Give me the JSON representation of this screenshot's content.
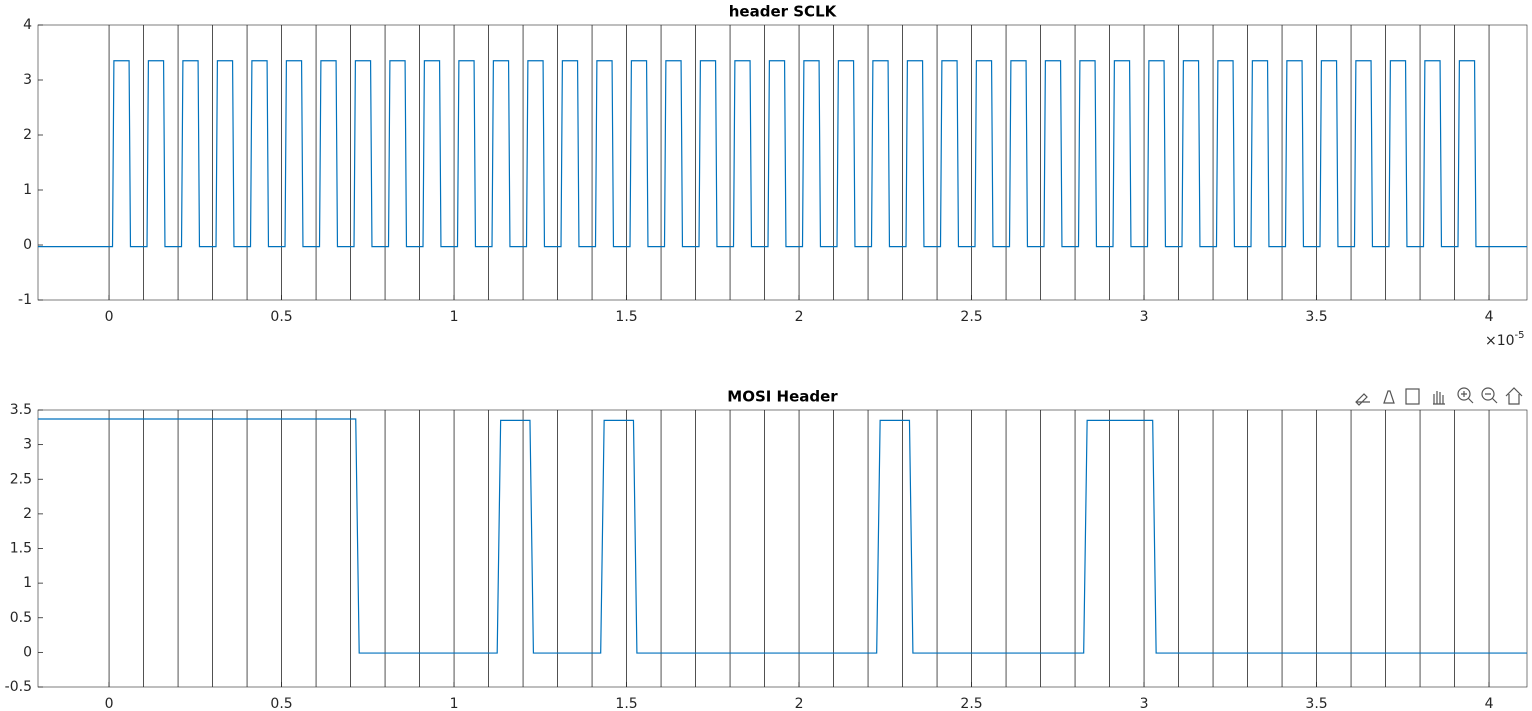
{
  "chart_data": [
    {
      "type": "line",
      "title": "header SCLK",
      "color": "#0072bd",
      "xline_color": "#262626",
      "xlim": [
        -0.206,
        4.11
      ],
      "ylim": [
        -1,
        4
      ],
      "xticks": [
        0,
        0.5,
        1,
        1.5,
        2,
        2.5,
        3,
        3.5,
        4
      ],
      "yticks": [
        -1,
        0,
        1,
        2,
        3,
        4
      ],
      "x_multiplier": "×10",
      "x_exponent": "-5",
      "xlines": [
        0,
        0.1,
        0.2,
        0.3,
        0.4,
        0.5,
        0.6,
        0.7,
        0.8,
        0.9,
        1,
        1.1,
        1.2,
        1.3,
        1.4,
        1.5,
        1.6,
        1.7,
        1.8,
        1.9,
        2,
        2.1,
        2.2,
        2.3,
        2.4,
        2.5,
        2.6,
        2.7,
        2.8,
        2.9,
        3,
        3.1,
        3.2,
        3.3,
        3.4,
        3.5,
        3.6,
        3.7,
        3.8,
        3.9,
        4
      ],
      "x": [
        -0.206,
        0.01,
        0.014,
        0.058,
        0.062,
        0.11,
        0.114,
        0.158,
        0.162,
        0.21,
        0.214,
        0.258,
        0.262,
        0.31,
        0.314,
        0.358,
        0.362,
        0.41,
        0.414,
        0.458,
        0.462,
        0.51,
        0.514,
        0.558,
        0.562,
        0.61,
        0.614,
        0.658,
        0.662,
        0.71,
        0.714,
        0.758,
        0.762,
        0.81,
        0.814,
        0.858,
        0.862,
        0.91,
        0.914,
        0.958,
        0.962,
        1.01,
        1.014,
        1.058,
        1.062,
        1.11,
        1.114,
        1.158,
        1.162,
        1.21,
        1.214,
        1.258,
        1.262,
        1.31,
        1.314,
        1.358,
        1.362,
        1.41,
        1.414,
        1.458,
        1.462,
        1.51,
        1.514,
        1.558,
        1.562,
        1.61,
        1.614,
        1.658,
        1.662,
        1.71,
        1.714,
        1.758,
        1.762,
        1.81,
        1.814,
        1.858,
        1.862,
        1.91,
        1.914,
        1.958,
        1.962,
        2.01,
        2.014,
        2.058,
        2.062,
        2.11,
        2.114,
        2.158,
        2.162,
        2.21,
        2.214,
        2.258,
        2.262,
        2.31,
        2.314,
        2.358,
        2.362,
        2.41,
        2.414,
        2.458,
        2.462,
        2.51,
        2.514,
        2.558,
        2.562,
        2.61,
        2.614,
        2.658,
        2.662,
        2.71,
        2.714,
        2.758,
        2.762,
        2.81,
        2.814,
        2.858,
        2.862,
        2.91,
        2.914,
        2.958,
        2.962,
        3.01,
        3.014,
        3.058,
        3.062,
        3.11,
        3.114,
        3.158,
        3.162,
        3.21,
        3.214,
        3.258,
        3.262,
        3.31,
        3.314,
        3.358,
        3.362,
        3.41,
        3.414,
        3.458,
        3.462,
        3.51,
        3.514,
        3.558,
        3.562,
        3.61,
        3.614,
        3.658,
        3.662,
        3.71,
        3.714,
        3.758,
        3.762,
        3.81,
        3.814,
        3.858,
        3.862,
        3.91,
        3.914,
        3.958,
        3.962,
        4.11
      ],
      "values": [
        -0.03,
        -0.03,
        3.35,
        3.35,
        -0.03,
        -0.03,
        3.35,
        3.35,
        -0.03,
        -0.03,
        3.35,
        3.35,
        -0.03,
        -0.03,
        3.35,
        3.35,
        -0.03,
        -0.03,
        3.35,
        3.35,
        -0.03,
        -0.03,
        3.35,
        3.35,
        -0.03,
        -0.03,
        3.35,
        3.35,
        -0.03,
        -0.03,
        3.35,
        3.35,
        -0.03,
        -0.03,
        3.35,
        3.35,
        -0.03,
        -0.03,
        3.35,
        3.35,
        -0.03,
        -0.03,
        3.35,
        3.35,
        -0.03,
        -0.03,
        3.35,
        3.35,
        -0.03,
        -0.03,
        3.35,
        3.35,
        -0.03,
        -0.03,
        3.35,
        3.35,
        -0.03,
        -0.03,
        3.35,
        3.35,
        -0.03,
        -0.03,
        3.35,
        3.35,
        -0.03,
        -0.03,
        3.35,
        3.35,
        -0.03,
        -0.03,
        3.35,
        3.35,
        -0.03,
        -0.03,
        3.35,
        3.35,
        -0.03,
        -0.03,
        3.35,
        3.35,
        -0.03,
        -0.03,
        3.35,
        3.35,
        -0.03,
        -0.03,
        3.35,
        3.35,
        -0.03,
        -0.03,
        3.35,
        3.35,
        -0.03,
        -0.03,
        3.35,
        3.35,
        -0.03,
        -0.03,
        3.35,
        3.35,
        -0.03,
        -0.03,
        3.35,
        3.35,
        -0.03,
        -0.03,
        3.35,
        3.35,
        -0.03,
        -0.03,
        3.35,
        3.35,
        -0.03,
        -0.03,
        3.35,
        3.35,
        -0.03,
        -0.03,
        3.35,
        3.35,
        -0.03,
        -0.03,
        3.35,
        3.35,
        -0.03,
        -0.03,
        3.35,
        3.35,
        -0.03,
        -0.03,
        3.35,
        3.35,
        -0.03,
        -0.03,
        3.35,
        3.35,
        -0.03,
        -0.03,
        3.35,
        3.35,
        -0.03,
        -0.03,
        3.35,
        3.35,
        -0.03,
        -0.03,
        3.35,
        3.35,
        -0.03,
        -0.03,
        3.35,
        3.35,
        -0.03,
        -0.03,
        3.35,
        3.35,
        -0.03,
        -0.03,
        3.35,
        3.35,
        -0.03,
        -0.03
      ]
    },
    {
      "type": "line",
      "title": "MOSI Header",
      "color": "#0072bd",
      "xline_color": "#262626",
      "xlim": [
        -0.206,
        4.11
      ],
      "ylim": [
        -0.5,
        3.5
      ],
      "xticks": [
        0,
        0.5,
        1,
        1.5,
        2,
        2.5,
        3,
        3.5,
        4
      ],
      "yticks": [
        -0.5,
        0,
        0.5,
        1,
        1.5,
        2,
        2.5,
        3,
        3.5
      ],
      "xlines": [
        0,
        0.1,
        0.2,
        0.3,
        0.4,
        0.5,
        0.6,
        0.7,
        0.8,
        0.9,
        1,
        1.1,
        1.2,
        1.3,
        1.4,
        1.5,
        1.6,
        1.7,
        1.8,
        1.9,
        2,
        2.1,
        2.2,
        2.3,
        2.4,
        2.5,
        2.6,
        2.7,
        2.8,
        2.9,
        3,
        3.1,
        3.2,
        3.3,
        3.4,
        3.5,
        3.6,
        3.7,
        3.8,
        3.9,
        4
      ],
      "x": [
        -0.206,
        0.715,
        0.725,
        1.125,
        1.135,
        1.22,
        1.23,
        1.425,
        1.435,
        1.52,
        1.53,
        2.225,
        2.235,
        2.32,
        2.33,
        2.825,
        2.835,
        3.025,
        3.035,
        4.11
      ],
      "values": [
        3.37,
        3.37,
        -0.01,
        -0.01,
        3.35,
        3.35,
        -0.01,
        -0.01,
        3.35,
        3.35,
        -0.01,
        -0.01,
        3.35,
        3.35,
        -0.01,
        -0.01,
        3.35,
        3.35,
        -0.01,
        -0.01
      ]
    }
  ]
}
